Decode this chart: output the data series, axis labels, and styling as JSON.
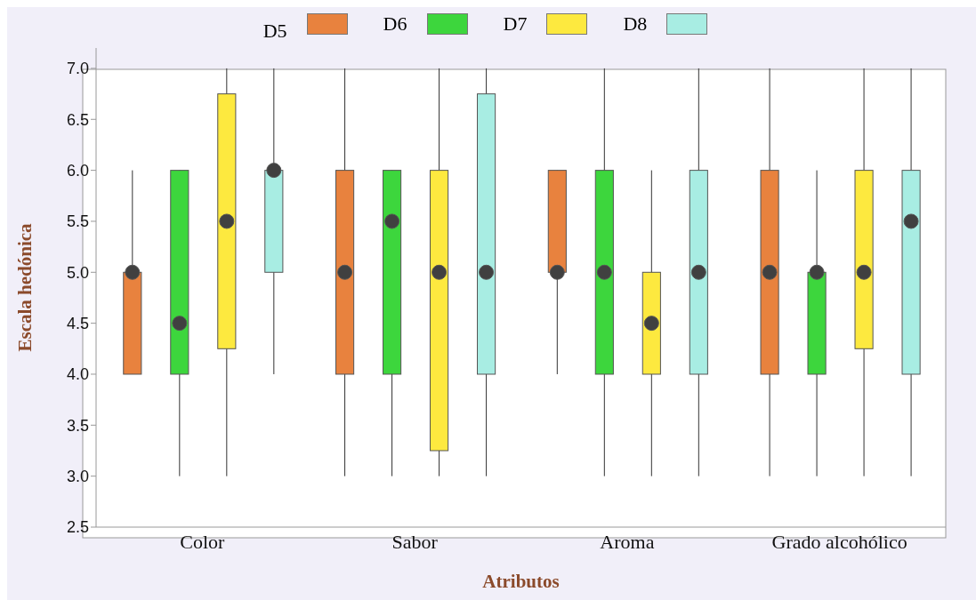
{
  "chart_data": {
    "type": "box",
    "xlabel": "Atributos",
    "ylabel": "Escala hedónica",
    "categories": [
      "Color",
      "Sabor",
      "Aroma",
      "Grado alcohólico"
    ],
    "ylim": [
      2.5,
      7.2
    ],
    "yticks": [
      {
        "value": 2.5,
        "label": "2.5"
      },
      {
        "value": 3,
        "label": "3.0"
      },
      {
        "value": 3.5,
        "label": "3.5"
      },
      {
        "value": 4,
        "label": "4.0"
      },
      {
        "value": 4.5,
        "label": "4.5"
      },
      {
        "value": 5,
        "label": "5.0"
      },
      {
        "value": 5.5,
        "label": "5.5"
      },
      {
        "value": 6,
        "label": "6.0"
      },
      {
        "value": 6.5,
        "label": "6.5"
      },
      {
        "value": 7,
        "label": "7.0"
      }
    ],
    "legend": "top",
    "series": [
      {
        "name": "D5",
        "color": "#e8823e",
        "boxes": [
          {
            "low": 4,
            "q1": 4,
            "median": 5,
            "q3": 5,
            "high": 6,
            "mean": 5
          },
          {
            "low": 3,
            "q1": 4,
            "median": 5,
            "q3": 6,
            "high": 7,
            "mean": 5
          },
          {
            "low": 4,
            "q1": 5,
            "median": 5,
            "q3": 6,
            "high": 6,
            "mean": 5
          },
          {
            "low": 3,
            "q1": 4,
            "median": 5,
            "q3": 6,
            "high": 7,
            "mean": 5
          }
        ]
      },
      {
        "name": "D6",
        "color": "#3dd63d",
        "boxes": [
          {
            "low": 3,
            "q1": 4,
            "median": 4.5,
            "q3": 6,
            "high": 6,
            "mean": 4.5
          },
          {
            "low": 3,
            "q1": 4,
            "median": 5.5,
            "q3": 6,
            "high": 6,
            "mean": 5.5
          },
          {
            "low": 3,
            "q1": 4,
            "median": 5,
            "q3": 6,
            "high": 7,
            "mean": 5
          },
          {
            "low": 3,
            "q1": 4,
            "median": 5,
            "q3": 5,
            "high": 6,
            "mean": 5
          }
        ]
      },
      {
        "name": "D7",
        "color": "#fde93f",
        "boxes": [
          {
            "low": 3,
            "q1": 4.25,
            "median": 5.5,
            "q3": 6.75,
            "high": 7,
            "mean": 5.5
          },
          {
            "low": 3,
            "q1": 3.25,
            "median": 5,
            "q3": 6,
            "high": 7,
            "mean": 5
          },
          {
            "low": 3,
            "q1": 4,
            "median": 4.5,
            "q3": 5,
            "high": 6,
            "mean": 4.5
          },
          {
            "low": 3,
            "q1": 4.25,
            "median": 5,
            "q3": 6,
            "high": 7,
            "mean": 5
          }
        ]
      },
      {
        "name": "D8",
        "color": "#a8ede3",
        "boxes": [
          {
            "low": 4,
            "q1": 5,
            "median": 6,
            "q3": 6,
            "high": 7,
            "mean": 6
          },
          {
            "low": 3,
            "q1": 4,
            "median": 5,
            "q3": 6.75,
            "high": 7,
            "mean": 5
          },
          {
            "low": 3,
            "q1": 4,
            "median": 5,
            "q3": 6,
            "high": 7,
            "mean": 5
          },
          {
            "low": 3,
            "q1": 4,
            "median": 5.5,
            "q3": 6,
            "high": 7,
            "mean": 5.5
          }
        ]
      }
    ]
  }
}
